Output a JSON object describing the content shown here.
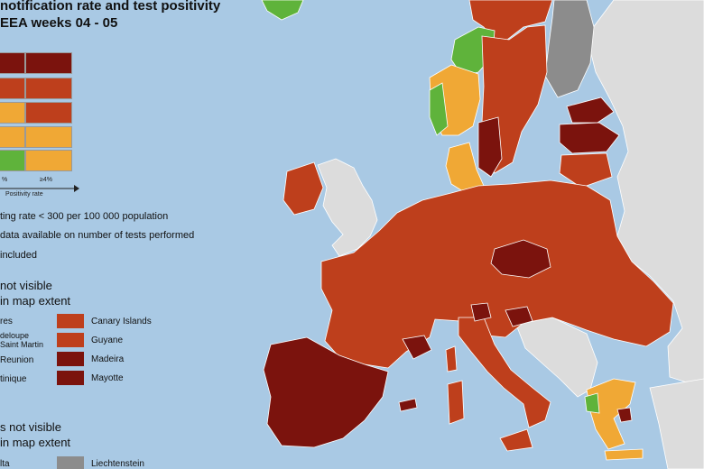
{
  "title": {
    "line1": "notification rate and test positivity",
    "line2": "EEA weeks 04 - 05"
  },
  "legend": {
    "colors": {
      "dark_red": "#7b130d",
      "red": "#be3f1c",
      "orange": "#f0a835",
      "green": "#5fb33b",
      "grey": "#8c8c8c",
      "light_grey": "#dcdcdc",
      "sea": "#a9c9e4"
    },
    "tick_left": "%",
    "tick_right": "≥4%",
    "axis_title": "Positivity rate",
    "notes": [
      "ting rate < 300 per 100 000 population",
      "data available on number of tests performed",
      "included"
    ]
  },
  "not_visible": {
    "heading_line1": "not visible",
    "heading_line2": "in map extent",
    "left_items": [
      "res",
      "deloupe",
      "Saint Martin",
      "Reunion",
      "tinique"
    ],
    "right_items": [
      "Canary Islands",
      "Guyane",
      "Madeira",
      "Mayotte"
    ]
  },
  "not_visible_2": {
    "heading_line1": "s not visible",
    "heading_line2": "in map extent",
    "left_item": "lta",
    "right_item": "Liechtenstein"
  }
}
